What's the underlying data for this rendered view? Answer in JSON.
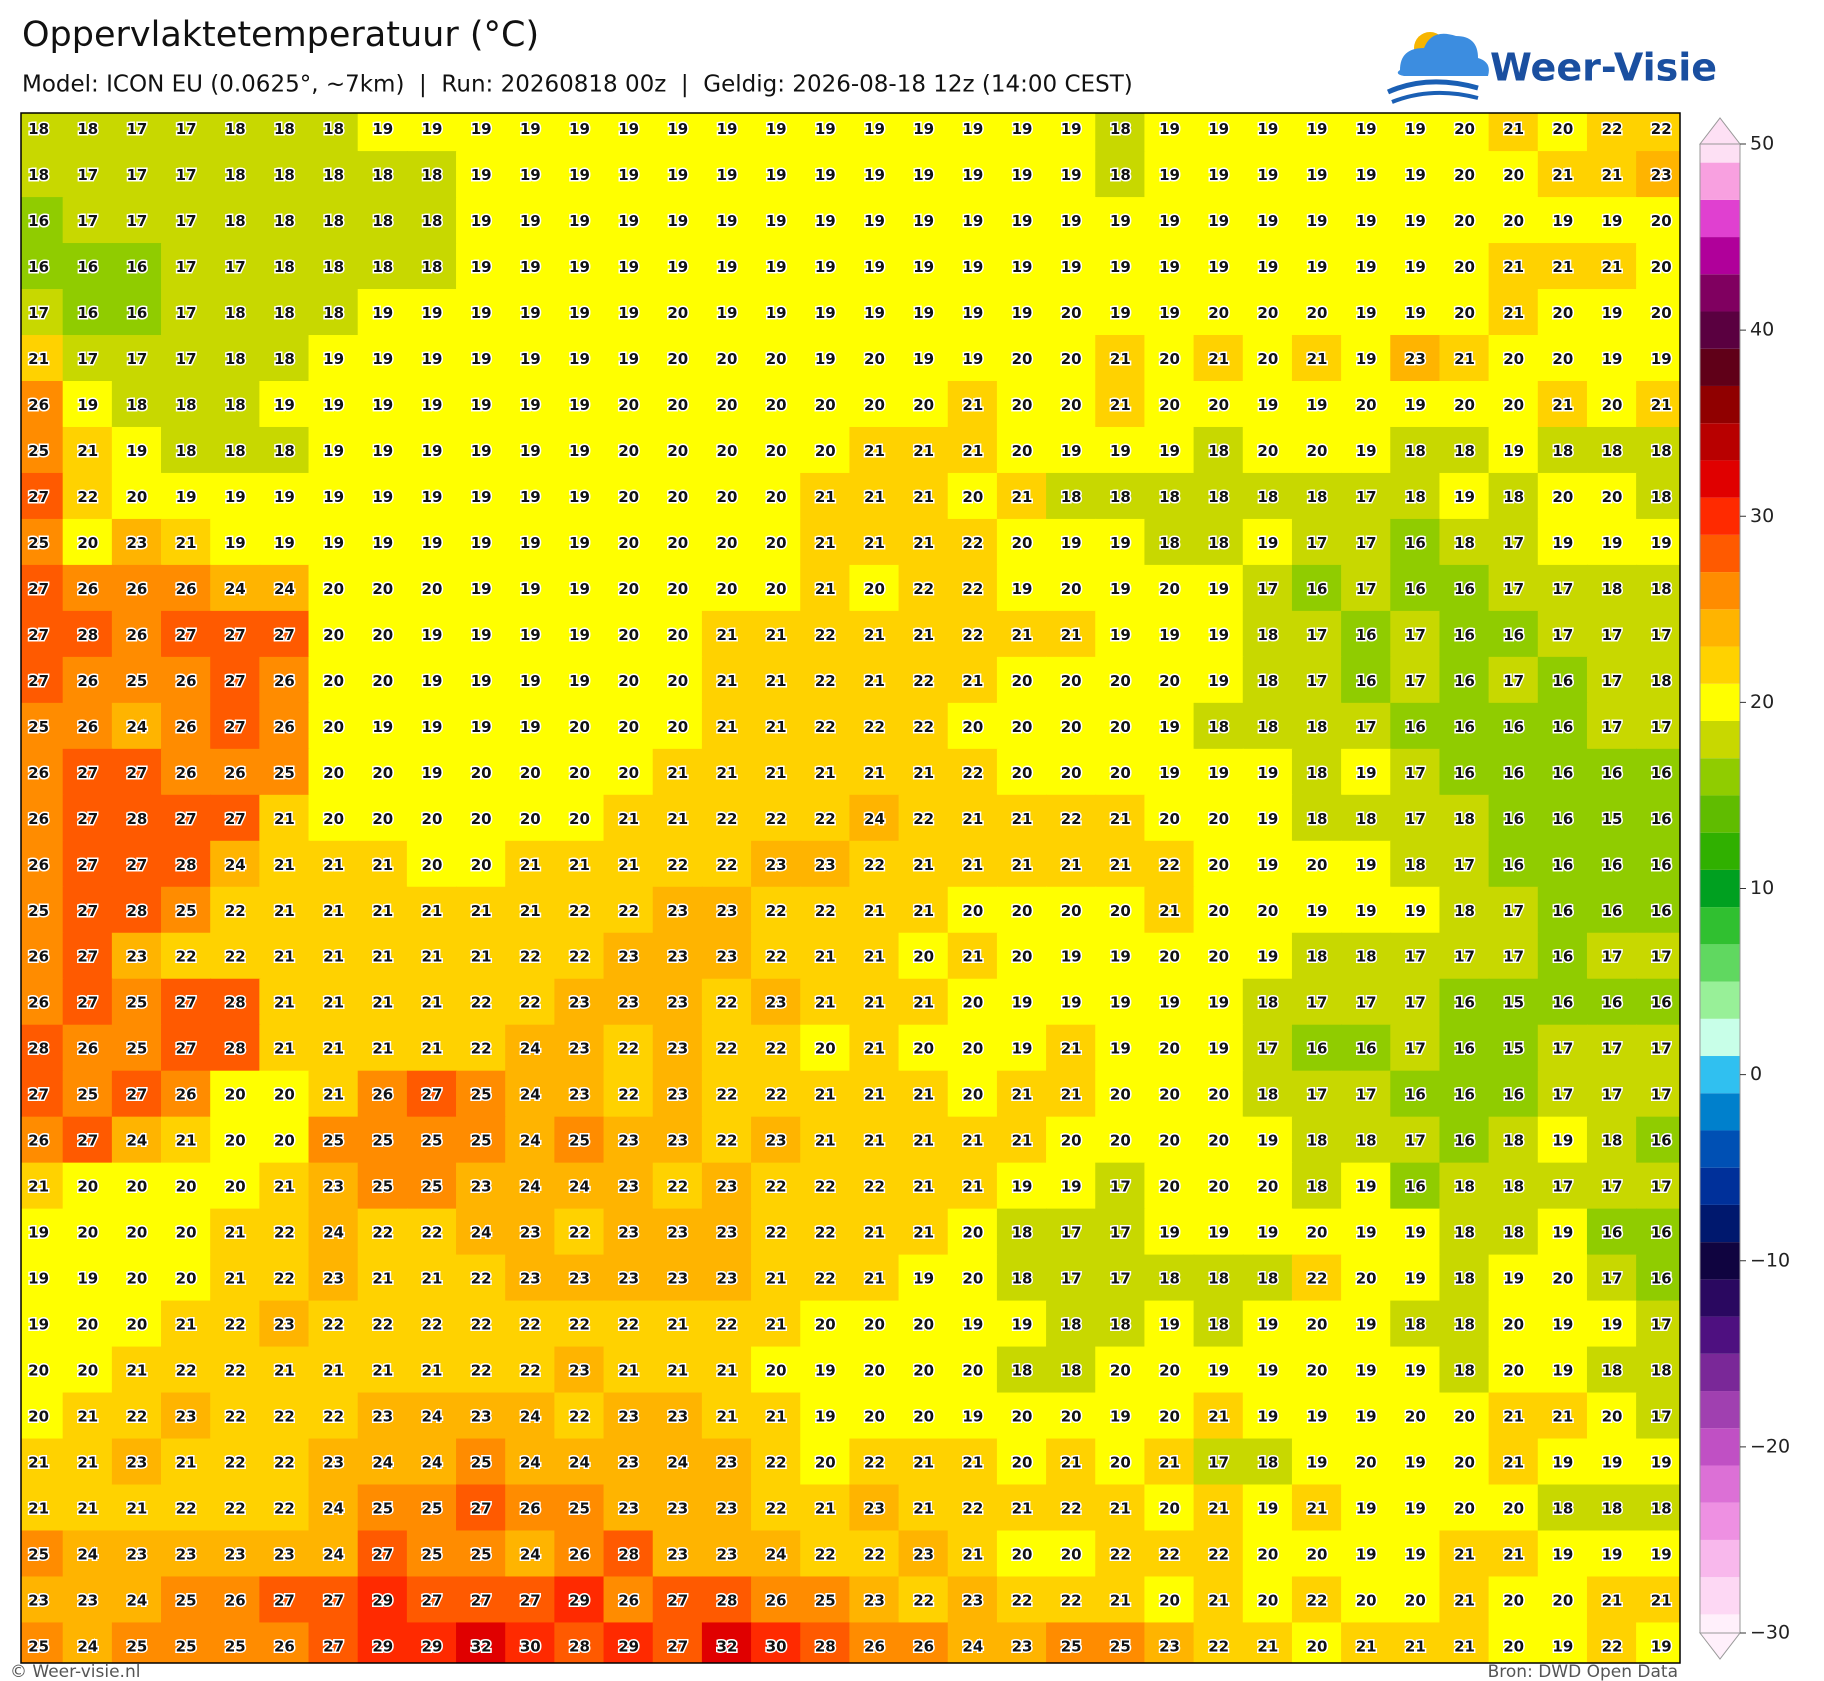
{
  "header": {
    "title": "Oppervlaktetemperatuur (°C)",
    "subtitle": "Model: ICON EU (0.0625°, ~7km)  |  Run: 20260818 00z  |  Geldig: 2026-08-18 12z (14:00 CEST)"
  },
  "logo": {
    "text": "Weer-Visie"
  },
  "map": {
    "type": "grid",
    "values": [
      [
        18,
        18,
        17,
        17,
        18,
        18,
        18,
        19,
        19,
        19,
        19,
        19,
        19,
        19,
        19,
        19,
        19,
        19,
        19,
        19,
        19,
        19,
        18,
        19,
        19,
        19,
        19,
        19,
        19,
        20,
        21,
        20,
        22,
        22
      ],
      [
        18,
        17,
        17,
        17,
        18,
        18,
        18,
        18,
        18,
        19,
        19,
        19,
        19,
        19,
        19,
        19,
        19,
        19,
        19,
        19,
        19,
        19,
        18,
        19,
        19,
        19,
        19,
        19,
        19,
        20,
        20,
        21,
        21,
        23
      ],
      [
        16,
        17,
        17,
        17,
        18,
        18,
        18,
        18,
        18,
        19,
        19,
        19,
        19,
        19,
        19,
        19,
        19,
        19,
        19,
        19,
        19,
        19,
        19,
        19,
        19,
        19,
        19,
        19,
        19,
        20,
        20,
        19,
        19,
        20
      ],
      [
        16,
        16,
        16,
        17,
        17,
        18,
        18,
        18,
        18,
        19,
        19,
        19,
        19,
        19,
        19,
        19,
        19,
        19,
        19,
        19,
        19,
        19,
        19,
        19,
        19,
        19,
        19,
        19,
        19,
        20,
        21,
        21,
        21,
        20
      ],
      [
        17,
        16,
        16,
        17,
        18,
        18,
        18,
        19,
        19,
        19,
        19,
        19,
        19,
        20,
        19,
        19,
        19,
        19,
        19,
        19,
        19,
        20,
        19,
        19,
        20,
        20,
        20,
        19,
        19,
        20,
        21,
        20,
        19,
        20
      ],
      [
        21,
        17,
        17,
        17,
        18,
        18,
        19,
        19,
        19,
        19,
        19,
        19,
        19,
        20,
        20,
        20,
        19,
        20,
        19,
        19,
        20,
        20,
        21,
        20,
        21,
        20,
        21,
        19,
        23,
        21,
        20,
        20,
        19,
        19
      ],
      [
        26,
        19,
        18,
        18,
        18,
        19,
        19,
        19,
        19,
        19,
        19,
        19,
        20,
        20,
        20,
        20,
        20,
        20,
        20,
        21,
        20,
        20,
        21,
        20,
        20,
        19,
        19,
        20,
        19,
        20,
        20,
        21,
        20,
        21
      ],
      [
        25,
        21,
        19,
        18,
        18,
        18,
        19,
        19,
        19,
        19,
        19,
        19,
        20,
        20,
        20,
        20,
        20,
        21,
        21,
        21,
        20,
        19,
        19,
        19,
        18,
        20,
        20,
        19,
        18,
        18,
        19,
        18,
        18,
        18
      ],
      [
        27,
        22,
        20,
        19,
        19,
        19,
        19,
        19,
        19,
        19,
        19,
        19,
        20,
        20,
        20,
        20,
        21,
        21,
        21,
        20,
        21,
        18,
        18,
        18,
        18,
        18,
        18,
        17,
        18,
        19,
        18,
        20,
        20,
        18
      ],
      [
        25,
        20,
        23,
        21,
        19,
        19,
        19,
        19,
        19,
        19,
        19,
        19,
        20,
        20,
        20,
        20,
        21,
        21,
        21,
        22,
        20,
        19,
        19,
        18,
        18,
        19,
        17,
        17,
        16,
        18,
        17,
        19,
        19,
        19
      ],
      [
        27,
        26,
        26,
        26,
        24,
        24,
        20,
        20,
        20,
        19,
        19,
        19,
        20,
        20,
        20,
        20,
        21,
        20,
        22,
        22,
        19,
        20,
        19,
        20,
        19,
        17,
        16,
        17,
        16,
        16,
        17,
        17,
        18,
        18
      ],
      [
        27,
        28,
        26,
        27,
        27,
        27,
        20,
        20,
        19,
        19,
        19,
        19,
        20,
        20,
        21,
        21,
        22,
        21,
        21,
        22,
        21,
        21,
        19,
        19,
        19,
        18,
        17,
        16,
        17,
        16,
        16,
        17,
        17,
        17
      ],
      [
        27,
        26,
        25,
        26,
        27,
        26,
        20,
        20,
        19,
        19,
        19,
        19,
        20,
        20,
        21,
        21,
        22,
        21,
        22,
        21,
        20,
        20,
        20,
        20,
        19,
        18,
        17,
        16,
        17,
        16,
        17,
        16,
        17,
        18
      ],
      [
        25,
        26,
        24,
        26,
        27,
        26,
        20,
        19,
        19,
        19,
        19,
        20,
        20,
        20,
        21,
        21,
        22,
        22,
        22,
        20,
        20,
        20,
        20,
        19,
        18,
        18,
        18,
        17,
        16,
        16,
        16,
        16,
        17,
        17
      ],
      [
        26,
        27,
        27,
        26,
        26,
        25,
        20,
        20,
        19,
        20,
        20,
        20,
        20,
        21,
        21,
        21,
        21,
        21,
        21,
        22,
        20,
        20,
        20,
        19,
        19,
        19,
        18,
        19,
        17,
        16,
        16,
        16,
        16,
        16
      ],
      [
        26,
        27,
        28,
        27,
        27,
        21,
        20,
        20,
        20,
        20,
        20,
        20,
        21,
        21,
        22,
        22,
        22,
        24,
        22,
        21,
        21,
        22,
        21,
        20,
        20,
        19,
        18,
        18,
        17,
        18,
        16,
        16,
        15,
        16
      ],
      [
        26,
        27,
        27,
        28,
        24,
        21,
        21,
        21,
        20,
        20,
        21,
        21,
        21,
        22,
        22,
        23,
        23,
        22,
        21,
        21,
        21,
        21,
        21,
        22,
        20,
        19,
        20,
        19,
        18,
        17,
        16,
        16,
        16,
        16
      ],
      [
        25,
        27,
        28,
        25,
        22,
        21,
        21,
        21,
        21,
        21,
        21,
        22,
        22,
        23,
        23,
        22,
        22,
        21,
        21,
        20,
        20,
        20,
        20,
        21,
        20,
        20,
        19,
        19,
        19,
        18,
        17,
        16,
        16,
        16
      ],
      [
        26,
        27,
        23,
        22,
        22,
        21,
        21,
        21,
        21,
        21,
        22,
        22,
        23,
        23,
        23,
        22,
        21,
        21,
        20,
        21,
        20,
        19,
        19,
        20,
        20,
        19,
        18,
        18,
        17,
        17,
        17,
        16,
        17,
        17
      ],
      [
        26,
        27,
        25,
        27,
        28,
        21,
        21,
        21,
        21,
        22,
        22,
        23,
        23,
        23,
        22,
        23,
        21,
        21,
        21,
        20,
        19,
        19,
        19,
        19,
        19,
        18,
        17,
        17,
        17,
        16,
        15,
        16,
        16,
        16
      ],
      [
        28,
        26,
        25,
        27,
        28,
        21,
        21,
        21,
        21,
        22,
        24,
        23,
        22,
        23,
        22,
        22,
        20,
        21,
        20,
        20,
        19,
        21,
        19,
        20,
        19,
        17,
        16,
        16,
        17,
        16,
        15,
        17,
        17,
        17
      ],
      [
        27,
        25,
        27,
        26,
        20,
        20,
        21,
        26,
        27,
        25,
        24,
        23,
        22,
        23,
        22,
        22,
        21,
        21,
        21,
        20,
        21,
        21,
        20,
        20,
        20,
        18,
        17,
        17,
        16,
        16,
        16,
        17,
        17,
        17
      ],
      [
        26,
        27,
        24,
        21,
        20,
        20,
        25,
        25,
        25,
        25,
        24,
        25,
        23,
        23,
        22,
        23,
        21,
        21,
        21,
        21,
        21,
        20,
        20,
        20,
        20,
        19,
        18,
        18,
        17,
        16,
        18,
        19,
        18,
        16
      ],
      [
        21,
        20,
        20,
        20,
        20,
        21,
        23,
        25,
        25,
        23,
        24,
        24,
        23,
        22,
        23,
        22,
        22,
        22,
        21,
        21,
        19,
        19,
        17,
        20,
        20,
        20,
        18,
        19,
        16,
        18,
        18,
        17,
        17,
        17
      ],
      [
        19,
        20,
        20,
        20,
        21,
        22,
        24,
        22,
        22,
        24,
        23,
        22,
        23,
        23,
        23,
        22,
        22,
        21,
        21,
        20,
        18,
        17,
        17,
        19,
        19,
        19,
        20,
        19,
        19,
        18,
        18,
        19,
        16,
        16
      ],
      [
        19,
        19,
        20,
        20,
        21,
        22,
        23,
        21,
        21,
        22,
        23,
        23,
        23,
        23,
        23,
        21,
        22,
        21,
        19,
        20,
        18,
        17,
        17,
        18,
        18,
        18,
        22,
        20,
        19,
        18,
        19,
        20,
        17,
        16
      ],
      [
        19,
        20,
        20,
        21,
        22,
        23,
        22,
        22,
        22,
        22,
        22,
        22,
        22,
        21,
        22,
        21,
        20,
        20,
        20,
        19,
        19,
        18,
        18,
        19,
        18,
        19,
        20,
        19,
        18,
        18,
        20,
        19,
        19,
        17
      ],
      [
        20,
        20,
        21,
        22,
        22,
        21,
        21,
        21,
        21,
        22,
        22,
        23,
        21,
        21,
        21,
        20,
        19,
        20,
        20,
        20,
        18,
        18,
        20,
        20,
        19,
        19,
        20,
        19,
        19,
        18,
        20,
        19,
        18,
        18
      ],
      [
        20,
        21,
        22,
        23,
        22,
        22,
        22,
        23,
        24,
        23,
        24,
        22,
        23,
        23,
        21,
        21,
        19,
        20,
        20,
        19,
        20,
        20,
        19,
        20,
        21,
        19,
        19,
        19,
        20,
        20,
        21,
        21,
        20,
        17
      ],
      [
        21,
        21,
        23,
        21,
        22,
        22,
        23,
        24,
        24,
        25,
        24,
        24,
        23,
        24,
        23,
        22,
        20,
        22,
        21,
        21,
        20,
        21,
        20,
        21,
        17,
        18,
        19,
        20,
        19,
        20,
        21,
        19,
        19,
        19
      ],
      [
        21,
        21,
        21,
        22,
        22,
        22,
        24,
        25,
        25,
        27,
        26,
        25,
        23,
        23,
        23,
        22,
        21,
        23,
        21,
        22,
        21,
        22,
        21,
        20,
        21,
        19,
        21,
        19,
        19,
        20,
        20,
        18,
        18,
        18
      ],
      [
        25,
        24,
        23,
        23,
        23,
        23,
        24,
        27,
        25,
        25,
        24,
        26,
        28,
        23,
        23,
        24,
        22,
        22,
        23,
        21,
        20,
        20,
        22,
        22,
        22,
        20,
        20,
        19,
        19,
        21,
        21,
        19,
        19,
        19
      ],
      [
        23,
        23,
        24,
        25,
        26,
        27,
        27,
        29,
        27,
        27,
        27,
        29,
        26,
        27,
        28,
        26,
        25,
        23,
        22,
        23,
        22,
        22,
        21,
        20,
        21,
        20,
        22,
        20,
        20,
        21,
        20,
        20,
        21,
        21
      ],
      [
        25,
        24,
        25,
        25,
        25,
        26,
        27,
        29,
        29,
        32,
        30,
        28,
        29,
        27,
        32,
        30,
        28,
        26,
        26,
        24,
        23,
        25,
        25,
        23,
        22,
        21,
        20,
        21,
        21,
        21,
        20,
        19,
        22,
        19
      ]
    ],
    "colorbar": {
      "ylim": [
        -30,
        50
      ],
      "yticks": [
        50,
        40,
        30,
        20,
        10,
        0,
        {
          "value": -10,
          "label": "−10"
        },
        {
          "value": -20,
          "label": "−20"
        },
        {
          "value": -30,
          "label": "−30"
        }
      ],
      "colors": [
        "#fff0fb",
        "#fdd8f4",
        "#f8b8ec",
        "#ee90e2",
        "#dc70d6",
        "#c050c4",
        "#a040b0",
        "#7a2898",
        "#4e1080",
        "#2a0860",
        "#100440",
        "#00186e",
        "#00309a",
        "#0050b4",
        "#0080cc",
        "#30c0f0",
        "#c8ffe8",
        "#98f098",
        "#60d860",
        "#30c030",
        "#00a020",
        "#30b000",
        "#60bc00",
        "#90cc00",
        "#c8d800",
        "#ffff00",
        "#ffd200",
        "#ffb400",
        "#ff8c00",
        "#ff5a00",
        "#ff2a00",
        "#e00000",
        "#b80000",
        "#900000",
        "#600018",
        "#5a0040",
        "#800060",
        "#b0009a",
        "#e040d0",
        "#f8a0e0",
        "#fde0f4"
      ]
    }
  },
  "footer": {
    "left": "© Weer-visie.nl",
    "right": "Bron: DWD Open Data"
  }
}
